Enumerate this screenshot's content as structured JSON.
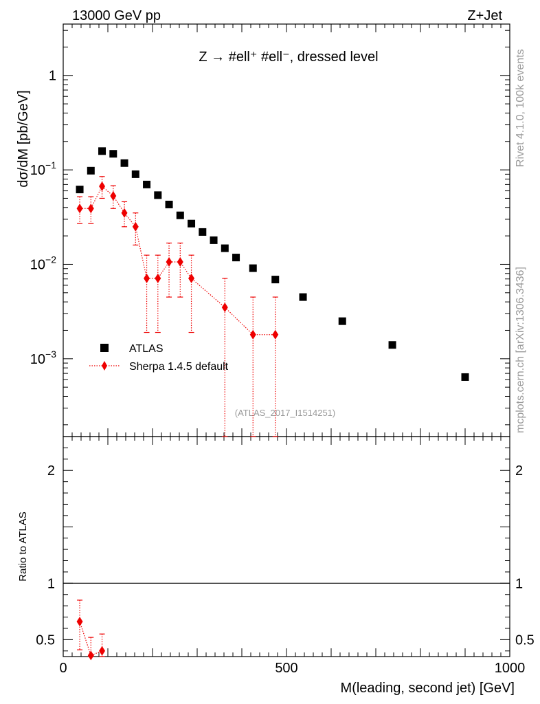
{
  "header": {
    "left": "13000 GeV pp",
    "right": "Z+Jet"
  },
  "side_labels": {
    "rivet": "Rivet 4.1.0,  100k events",
    "source": "mcplots.cern.ch [arXiv:1306.3436]"
  },
  "chart_data": {
    "type": "scatter",
    "title": "Z → #ell⁺ #ell⁻, dressed level",
    "analysis_label": "(ATLAS_2017_I1514251)",
    "xlabel": "M(leading, second jet) [GeV]",
    "ylabel": "dσ/dM [pb/GeV]",
    "ratio_ylabel": "Ratio to ATLAS",
    "xlim": [
      0,
      1000
    ],
    "ylim": [
      0.00015,
      3.5
    ],
    "yscale": "log",
    "ratio_ylim": [
      0.35,
      2.3
    ],
    "x_ticks": [
      0,
      500,
      1000
    ],
    "x_tick_labels": [
      "0",
      "500",
      "1000"
    ],
    "y_ticks": [
      0.001,
      0.01,
      0.1,
      1
    ],
    "y_tick_labels": [
      {
        "base": "10",
        "exp": "−3"
      },
      {
        "base": "10",
        "exp": "−2"
      },
      {
        "base": "10",
        "exp": "−1"
      },
      {
        "base": "1",
        "exp": ""
      }
    ],
    "ratio_y_ticks": [
      0.5,
      1,
      2
    ],
    "ratio_y_tick_labels": [
      "0.5",
      "1",
      "2"
    ],
    "legend": {
      "position": "center-left",
      "entries": [
        "ATLAS",
        "Sherpa 1.4.5 default"
      ]
    },
    "series": [
      {
        "name": "ATLAS",
        "color": "#000000",
        "marker": "square",
        "x": [
          37,
          62,
          87,
          112,
          137,
          162,
          187,
          212,
          237,
          262,
          287,
          312,
          337,
          362,
          387,
          425,
          475,
          537,
          625,
          737,
          900
        ],
        "y": [
          0.062,
          0.098,
          0.158,
          0.148,
          0.118,
          0.09,
          0.07,
          0.054,
          0.043,
          0.033,
          0.027,
          0.022,
          0.018,
          0.0148,
          0.0118,
          0.0091,
          0.0069,
          0.0045,
          0.0025,
          0.0014,
          0.00064
        ]
      },
      {
        "name": "Sherpa 1.4.5 default",
        "color": "#ee0000",
        "marker": "diamond",
        "line": "dotted",
        "x": [
          37,
          62,
          87,
          112,
          137,
          162,
          187,
          212,
          237,
          262,
          287,
          362,
          425,
          475
        ],
        "y": [
          0.039,
          0.039,
          0.067,
          0.053,
          0.035,
          0.025,
          0.0071,
          0.0071,
          0.0106,
          0.0106,
          0.0071,
          0.0035,
          0.0018,
          0.0018
        ],
        "err_low": [
          0.027,
          0.027,
          0.05,
          0.039,
          0.025,
          0.016,
          0.0019,
          0.0019,
          0.0045,
          0.0045,
          0.0019,
          0.00015,
          0.00015,
          0.00015
        ],
        "err_high": [
          0.052,
          0.052,
          0.085,
          0.068,
          0.046,
          0.035,
          0.0125,
          0.0125,
          0.0168,
          0.0168,
          0.0125,
          0.0071,
          0.0045,
          0.0045
        ]
      }
    ],
    "ratio_series": [
      {
        "name": "Sherpa 1.4.5 default / ATLAS",
        "color": "#ee0000",
        "x": [
          37,
          62,
          87
        ],
        "y": [
          0.66,
          0.36,
          0.4
        ],
        "err_low": [
          0.41,
          0.2,
          0.3
        ],
        "err_high": [
          0.85,
          0.52,
          0.55
        ]
      }
    ]
  }
}
